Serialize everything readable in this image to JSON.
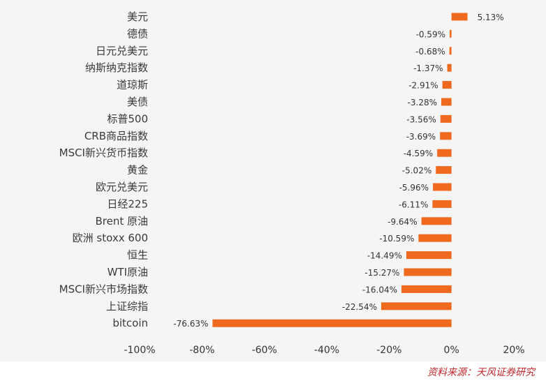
{
  "chart_data": {
    "type": "bar",
    "orientation": "horizontal",
    "categories": [
      "美元",
      "德债",
      "日元兑美元",
      "纳斯纳克指数",
      "道琼斯",
      "美债",
      "标普500",
      "CRB商品指数",
      "MSCI新兴货币指数",
      "黄金",
      "欧元兑美元",
      "日经225",
      "Brent 原油",
      "欧洲 stoxx 600",
      "恒生",
      "WTI原油",
      "MSCI新兴市场指数",
      "上证综指",
      "bitcoin"
    ],
    "values": [
      5.13,
      -0.59,
      -0.68,
      -1.37,
      -2.91,
      -3.28,
      -3.56,
      -3.69,
      -4.59,
      -5.02,
      -5.96,
      -6.11,
      -9.64,
      -10.59,
      -14.49,
      -15.27,
      -16.04,
      -22.54,
      -76.63
    ],
    "value_labels": [
      "5.13%",
      "-0.59%",
      "-0.68%",
      "-1.37%",
      "-2.91%",
      "-3.28%",
      "-3.56%",
      "-3.69%",
      "-4.59%",
      "-5.02%",
      "-5.96%",
      "-6.11%",
      "-9.64%",
      "-10.59%",
      "-14.49%",
      "-15.27%",
      "-16.04%",
      "-22.54%",
      "-76.63%"
    ],
    "xticks": [
      -100,
      -80,
      -60,
      -40,
      -20,
      0,
      20
    ],
    "xtick_labels": [
      "-100%",
      "-80%",
      "-60%",
      "-40%",
      "-20%",
      "0%",
      "20%"
    ],
    "xlim": [
      -100,
      20
    ],
    "bar_color": "#ef6a1f",
    "grid": false,
    "legend": "none"
  },
  "source": "资料来源：天风证券研究"
}
